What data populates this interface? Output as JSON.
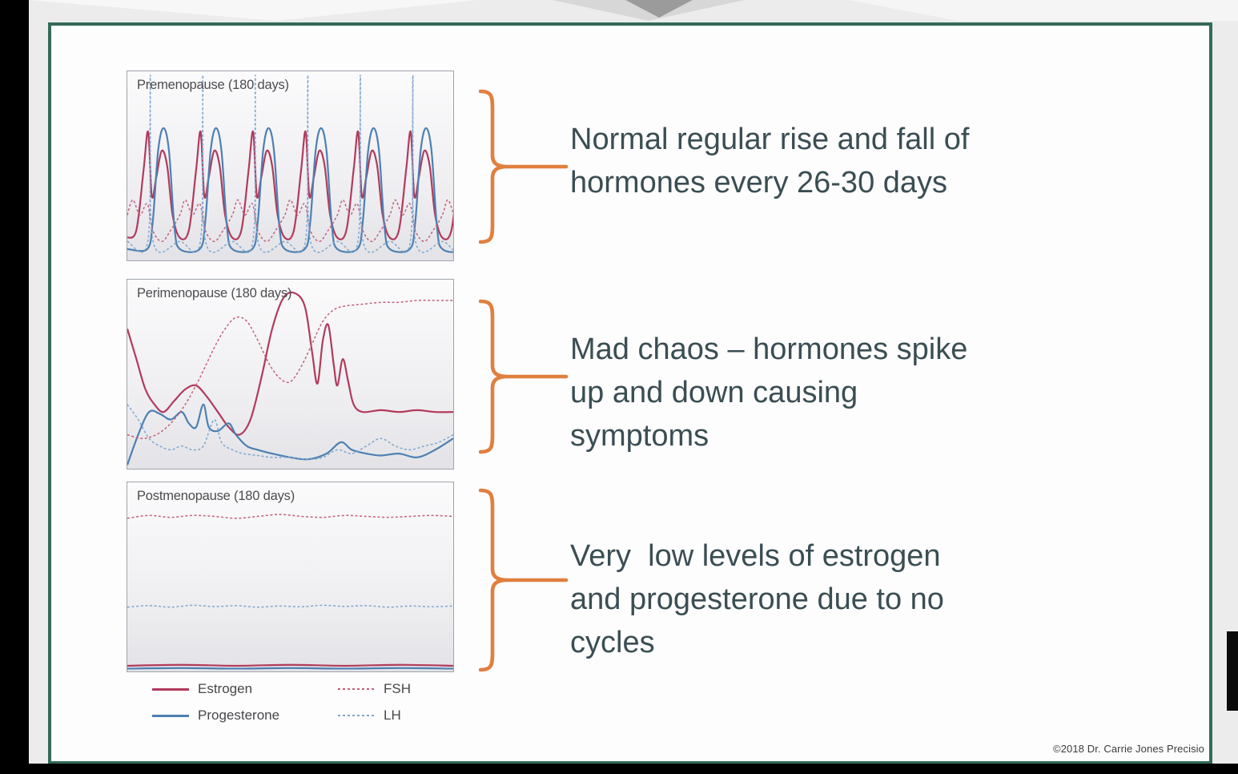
{
  "slide": {
    "copyright": "©2018 Dr. Carrie Jones Precisio",
    "annotations": [
      {
        "text": "Normal regular rise and fall of\nhormones every 26-30 days"
      },
      {
        "text": "Mad chaos – hormones spike\nup and down causing\nsymptoms"
      },
      {
        "text": "Very  low levels of estrogen\nand progesterone due to no\ncycles"
      }
    ]
  },
  "legend": {
    "items": [
      {
        "label": "Estrogen",
        "style": "solid",
        "color": "#b23a5c"
      },
      {
        "label": "FSH",
        "style": "dashed",
        "color": "#c4607a"
      },
      {
        "label": "Progesterone",
        "style": "solid",
        "color": "#4d80b2"
      },
      {
        "label": "LH",
        "style": "dashed",
        "color": "#7fa6cf"
      }
    ]
  },
  "colors": {
    "slide_border": "#336b57",
    "bracket": "#e07f3e",
    "annotation_text": "#3a4e53",
    "estrogen": "#b23a5c",
    "progesterone": "#4d80b2",
    "fsh": "#c4607a",
    "lh": "#7fa6cf"
  },
  "chart_data": [
    {
      "type": "line",
      "title": "Premenopause (180 days)",
      "x_unit": "days",
      "x_range": [
        0,
        180
      ],
      "y_range": [
        0,
        100
      ],
      "period": 29,
      "repeats": 7,
      "series": [
        {
          "name": "Estrogen",
          "style": "solid",
          "color": "#b23a5c",
          "cycle_points": [
            [
              0,
              12
            ],
            [
              5,
              16
            ],
            [
              9,
              48
            ],
            [
              11.5,
              68
            ],
            [
              13.5,
              34
            ],
            [
              16,
              44
            ],
            [
              19,
              58
            ],
            [
              22,
              50
            ],
            [
              25,
              24
            ],
            [
              29,
              12
            ]
          ]
        },
        {
          "name": "Progesterone",
          "style": "solid",
          "color": "#4d80b2",
          "cycle_points": [
            [
              0,
              6
            ],
            [
              11,
              6
            ],
            [
              14,
              20
            ],
            [
              17,
              58
            ],
            [
              20,
              70
            ],
            [
              23,
              58
            ],
            [
              26,
              18
            ],
            [
              29,
              6
            ]
          ]
        },
        {
          "name": "FSH",
          "style": "dashed",
          "color": "#c4607a",
          "cycle_points": [
            [
              0,
              24
            ],
            [
              3,
              32
            ],
            [
              7,
              24
            ],
            [
              11,
              30
            ],
            [
              14,
              16
            ],
            [
              19,
              10
            ],
            [
              24,
              16
            ],
            [
              29,
              24
            ]
          ]
        },
        {
          "name": "LH",
          "style": "dashed",
          "color": "#7fa6cf",
          "cycle_points": [
            [
              0,
              10
            ],
            [
              11.5,
              11
            ],
            [
              12.7,
              98
            ],
            [
              14,
              11
            ],
            [
              29,
              10
            ]
          ]
        }
      ]
    },
    {
      "type": "line",
      "title": "Perimenopause (180 days)",
      "x_unit": "days",
      "x_range": [
        0,
        180
      ],
      "y_range": [
        0,
        100
      ],
      "series": [
        {
          "name": "Estrogen",
          "style": "solid",
          "color": "#b23a5c",
          "points": [
            [
              0,
              74
            ],
            [
              5,
              58
            ],
            [
              10,
              42
            ],
            [
              15,
              34
            ],
            [
              20,
              30
            ],
            [
              26,
              36
            ],
            [
              32,
              42
            ],
            [
              38,
              44
            ],
            [
              44,
              38
            ],
            [
              50,
              30
            ],
            [
              56,
              22
            ],
            [
              62,
              18
            ],
            [
              68,
              26
            ],
            [
              74,
              48
            ],
            [
              80,
              74
            ],
            [
              86,
              90
            ],
            [
              92,
              93
            ],
            [
              98,
              86
            ],
            [
              102,
              62
            ],
            [
              105,
              45
            ],
            [
              108,
              68
            ],
            [
              111,
              76
            ],
            [
              114,
              55
            ],
            [
              116,
              44
            ],
            [
              119,
              58
            ],
            [
              122,
              46
            ],
            [
              125,
              34
            ],
            [
              130,
              30
            ],
            [
              140,
              31
            ],
            [
              150,
              30
            ],
            [
              160,
              31
            ],
            [
              170,
              30
            ],
            [
              180,
              30
            ]
          ]
        },
        {
          "name": "Progesterone",
          "style": "solid",
          "color": "#4d80b2",
          "points": [
            [
              0,
              2
            ],
            [
              6,
              18
            ],
            [
              12,
              30
            ],
            [
              18,
              29
            ],
            [
              24,
              26
            ],
            [
              30,
              30
            ],
            [
              34,
              24
            ],
            [
              38,
              22
            ],
            [
              42,
              34
            ],
            [
              45,
              22
            ],
            [
              50,
              20
            ],
            [
              56,
              24
            ],
            [
              60,
              18
            ],
            [
              66,
              12
            ],
            [
              72,
              10
            ],
            [
              80,
              8
            ],
            [
              90,
              6
            ],
            [
              100,
              5
            ],
            [
              110,
              8
            ],
            [
              118,
              14
            ],
            [
              124,
              10
            ],
            [
              132,
              8
            ],
            [
              140,
              7
            ],
            [
              150,
              8
            ],
            [
              160,
              6
            ],
            [
              170,
              10
            ],
            [
              180,
              16
            ]
          ]
        },
        {
          "name": "FSH",
          "style": "dashed",
          "color": "#c4607a",
          "points": [
            [
              0,
              18
            ],
            [
              8,
              16
            ],
            [
              16,
              18
            ],
            [
              24,
              24
            ],
            [
              32,
              34
            ],
            [
              40,
              48
            ],
            [
              48,
              64
            ],
            [
              54,
              74
            ],
            [
              60,
              80
            ],
            [
              66,
              78
            ],
            [
              72,
              68
            ],
            [
              78,
              56
            ],
            [
              84,
              48
            ],
            [
              90,
              46
            ],
            [
              96,
              54
            ],
            [
              102,
              66
            ],
            [
              108,
              78
            ],
            [
              114,
              84
            ],
            [
              120,
              86
            ],
            [
              130,
              87
            ],
            [
              140,
              88
            ],
            [
              150,
              88
            ],
            [
              160,
              89
            ],
            [
              170,
              89
            ],
            [
              180,
              89
            ]
          ]
        },
        {
          "name": "LH",
          "style": "dashed",
          "color": "#7fa6cf",
          "points": [
            [
              0,
              34
            ],
            [
              6,
              26
            ],
            [
              12,
              16
            ],
            [
              18,
              12
            ],
            [
              24,
              10
            ],
            [
              30,
              12
            ],
            [
              36,
              10
            ],
            [
              42,
              12
            ],
            [
              48,
              26
            ],
            [
              52,
              14
            ],
            [
              58,
              10
            ],
            [
              64,
              8
            ],
            [
              72,
              7
            ],
            [
              80,
              6
            ],
            [
              90,
              6
            ],
            [
              100,
              5
            ],
            [
              108,
              6
            ],
            [
              116,
              10
            ],
            [
              124,
              8
            ],
            [
              132,
              12
            ],
            [
              140,
              16
            ],
            [
              148,
              12
            ],
            [
              156,
              10
            ],
            [
              164,
              12
            ],
            [
              172,
              14
            ],
            [
              180,
              18
            ]
          ]
        }
      ]
    },
    {
      "type": "line",
      "title": "Postmenopause (180 days)",
      "x_unit": "days",
      "x_range": [
        0,
        180
      ],
      "y_range": [
        0,
        100
      ],
      "series": [
        {
          "name": "FSH",
          "style": "dashed",
          "color": "#c4607a",
          "points": [
            [
              0,
              81
            ],
            [
              12,
              82.5
            ],
            [
              24,
              81.5
            ],
            [
              36,
              82.5
            ],
            [
              48,
              82
            ],
            [
              60,
              81
            ],
            [
              72,
              82
            ],
            [
              84,
              83
            ],
            [
              96,
              82
            ],
            [
              108,
              81.5
            ],
            [
              120,
              82.5
            ],
            [
              132,
              82
            ],
            [
              144,
              81.5
            ],
            [
              156,
              82
            ],
            [
              168,
              82.5
            ],
            [
              180,
              82
            ]
          ]
        },
        {
          "name": "LH",
          "style": "dashed",
          "color": "#7fa6cf",
          "points": [
            [
              0,
              34
            ],
            [
              12,
              34.8
            ],
            [
              24,
              34
            ],
            [
              36,
              35
            ],
            [
              48,
              34.3
            ],
            [
              60,
              34.8
            ],
            [
              72,
              34
            ],
            [
              84,
              34.6
            ],
            [
              96,
              34.2
            ],
            [
              108,
              35
            ],
            [
              120,
              34.4
            ],
            [
              132,
              34.8
            ],
            [
              144,
              34
            ],
            [
              156,
              34.6
            ],
            [
              168,
              34.2
            ],
            [
              180,
              34.6
            ]
          ]
        },
        {
          "name": "Estrogen",
          "style": "solid",
          "color": "#b23a5c",
          "points": [
            [
              0,
              3
            ],
            [
              30,
              3.5
            ],
            [
              60,
              3
            ],
            [
              90,
              3.5
            ],
            [
              120,
              3
            ],
            [
              150,
              3.5
            ],
            [
              180,
              3
            ]
          ]
        },
        {
          "name": "Progesterone",
          "style": "solid",
          "color": "#4d80b2",
          "points": [
            [
              0,
              1.5
            ],
            [
              30,
              1.8
            ],
            [
              60,
              1.5
            ],
            [
              90,
              1.8
            ],
            [
              120,
              1.5
            ],
            [
              150,
              1.8
            ],
            [
              180,
              1.5
            ]
          ]
        }
      ]
    }
  ]
}
